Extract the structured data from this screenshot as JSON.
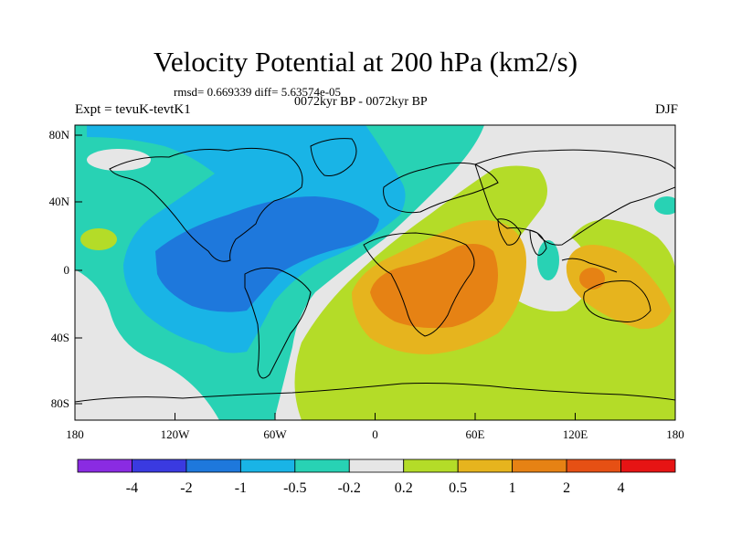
{
  "title": "Velocity Potential at 200 hPa (km2/s)",
  "stats": "rmsd= 0.669339 diff= 5.63574e-05",
  "subtitle": "0072kyr BP - 0072kyr BP",
  "experiment": "Expt = tevuK-tevtK1",
  "season": "DJF",
  "axes": {
    "x_ticks": [
      "180",
      "120W",
      "60W",
      "0",
      "60E",
      "120E",
      "180"
    ],
    "y_ticks": [
      "80N",
      "40N",
      "0",
      "40S",
      "80S"
    ]
  },
  "colorbar": {
    "labels": [
      "-4",
      "-2",
      "-1",
      "-0.5",
      "-0.2",
      "0.2",
      "0.5",
      "1",
      "2",
      "4"
    ],
    "colors": [
      "#8a2be2",
      "#3a3ae0",
      "#1e78dc",
      "#19b4e6",
      "#28d2b4",
      "#e6e6e6",
      "#b4dc28",
      "#e6b41e",
      "#e68214",
      "#e65014",
      "#e61414"
    ]
  },
  "colors": {
    "land_outline": "#000000",
    "neutral": "#e6e6e6"
  }
}
